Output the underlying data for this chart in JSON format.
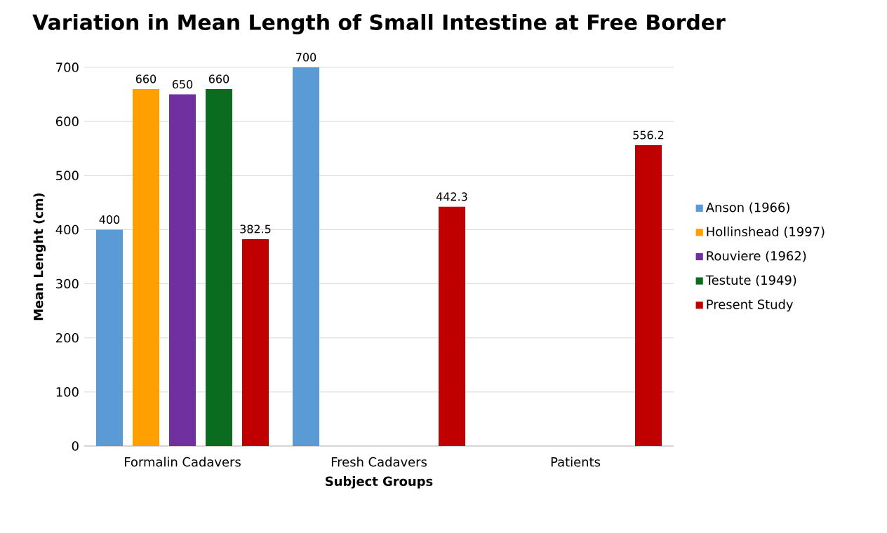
{
  "chart_data": {
    "type": "bar",
    "title": "Variation in Mean Length of Small Intestine at Free Border",
    "xlabel": "Subject Groups",
    "ylabel": "Mean Lenght (cm)",
    "categories": [
      "Formalin Cadavers",
      "Fresh Cadavers",
      "Patients"
    ],
    "series": [
      {
        "name": "Anson (1966)",
        "color": "#5b9bd5",
        "values": [
          400,
          700,
          null
        ]
      },
      {
        "name": "Hollinshead (1997)",
        "color": "#ffa000",
        "values": [
          660,
          null,
          null
        ]
      },
      {
        "name": "Rouviere (1962)",
        "color": "#7030a0",
        "values": [
          650,
          null,
          null
        ]
      },
      {
        "name": "Testute (1949)",
        "color": "#0b6b1f",
        "values": [
          660,
          null,
          null
        ]
      },
      {
        "name": "Present Study",
        "color": "#c00000",
        "values": [
          382.5,
          442.3,
          556.2
        ]
      }
    ],
    "ylim": [
      0,
      700
    ],
    "yticks": [
      0,
      100,
      200,
      300,
      400,
      500,
      600,
      700
    ],
    "grid": "y",
    "legend": "right",
    "data_labels": true
  }
}
